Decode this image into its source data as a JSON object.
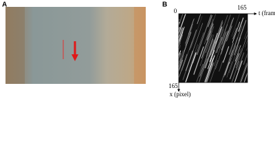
{
  "panel_a": {
    "label": "A"
  },
  "panel_b": {
    "label": "B",
    "origin": "0",
    "t_max": "165",
    "t_label": "t (frame)",
    "x_max": "165",
    "x_label": "x (pixel)"
  }
}
